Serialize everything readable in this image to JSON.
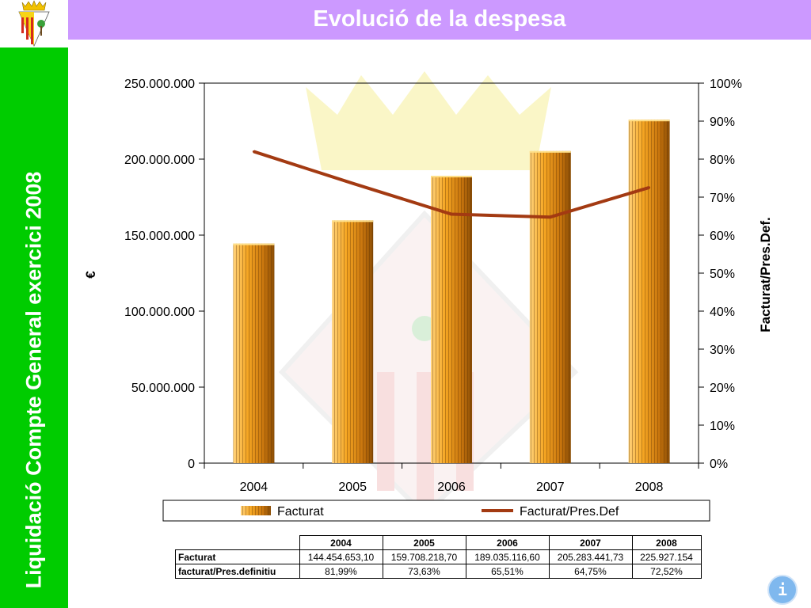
{
  "slide": {
    "title": "Evolució de la despesa",
    "side_title": "Liquidació Compte General exercici 2008"
  },
  "colors": {
    "title_bar": "#cc99ff",
    "side_bar": "#00cc00",
    "bar_fill": "#f5a623",
    "line": "#a33a12"
  },
  "icons": {
    "logo": "municipal-coat-of-arms",
    "info": "info-icon"
  },
  "info_button": {
    "label": "i"
  },
  "chart_data": {
    "type": "bar",
    "categories": [
      "2004",
      "2005",
      "2006",
      "2007",
      "2008"
    ],
    "series": [
      {
        "name": "Facturat",
        "type": "bar",
        "axis": "left",
        "values": [
          144454653.1,
          159708218.7,
          189035116.6,
          205283441.73,
          225927154
        ]
      },
      {
        "name": "Facturat/Pres.Def",
        "type": "line",
        "axis": "right",
        "values": [
          81.99,
          73.63,
          65.51,
          64.75,
          72.52
        ]
      }
    ],
    "ylabel": "€",
    "y2label": "Facturat/Pres.Def.",
    "ylim": [
      0,
      250000000
    ],
    "y2lim": [
      0,
      100
    ],
    "yticks": [
      "0",
      "50.000.000",
      "100.000.000",
      "150.000.000",
      "200.000.000",
      "250.000.000"
    ],
    "y2ticks": [
      "0%",
      "10%",
      "20%",
      "30%",
      "40%",
      "50%",
      "60%",
      "70%",
      "80%",
      "90%",
      "100%"
    ],
    "legend": {
      "placement": "bottom",
      "items": [
        "Facturat",
        "Facturat/Pres.Def"
      ]
    }
  },
  "table": {
    "headers": [
      "2004",
      "2005",
      "2006",
      "2007",
      "2008"
    ],
    "rows": [
      {
        "label": "Facturat",
        "cells": [
          "144.454.653,10",
          "159.708.218,70",
          "189.035.116,60",
          "205.283.441,73",
          "225.927.154"
        ]
      },
      {
        "label": "facturat/Pres.definitiu",
        "cells": [
          "81,99%",
          "73,63%",
          "65,51%",
          "64,75%",
          "72,52%"
        ]
      }
    ]
  }
}
